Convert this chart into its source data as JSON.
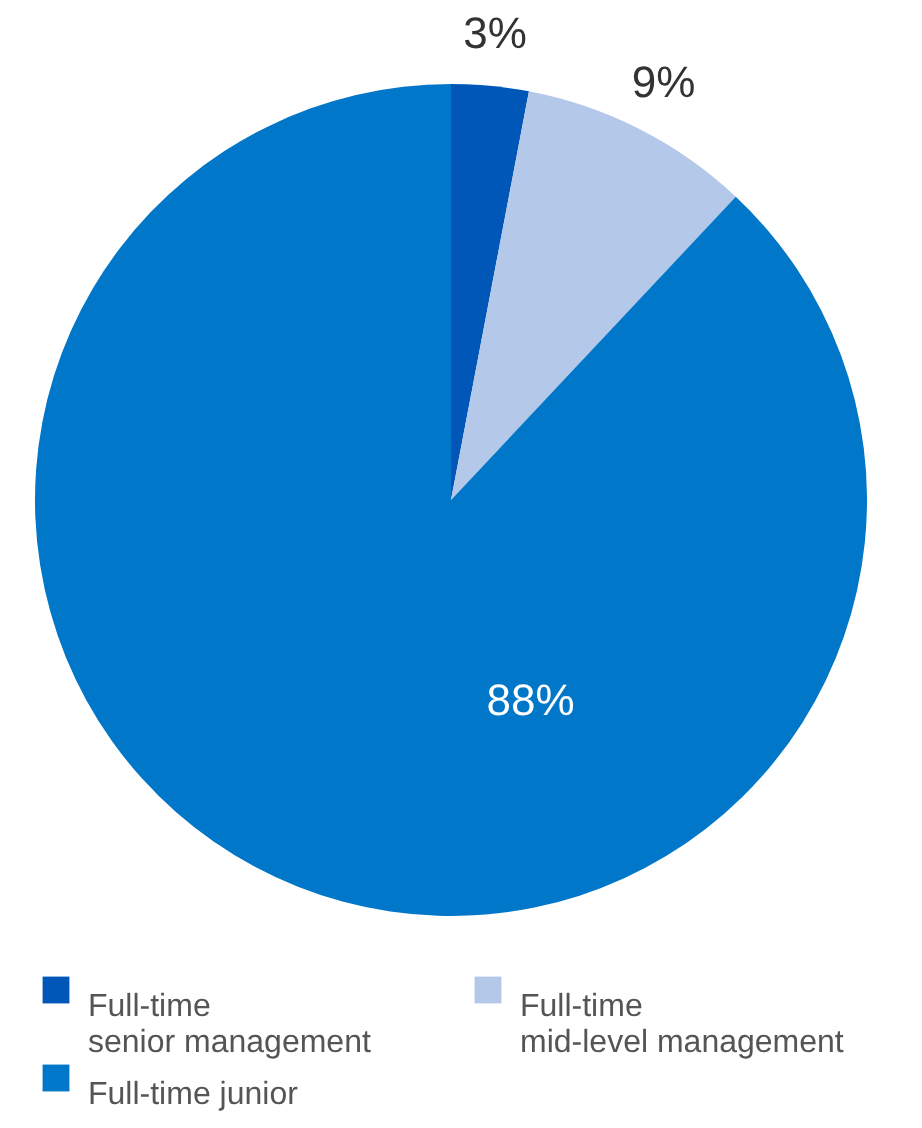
{
  "chart_data": {
    "type": "pie",
    "categories": [
      "Full-time\nsenior management",
      "Full-time\nmid-level management",
      "Full-time junior"
    ],
    "values": [
      3,
      9,
      88
    ],
    "colors": [
      "#0057b8",
      "#b4c8e9",
      "#0077c8"
    ],
    "value_labels": [
      "3%",
      "9%",
      "88%"
    ],
    "legend": "bottom"
  }
}
